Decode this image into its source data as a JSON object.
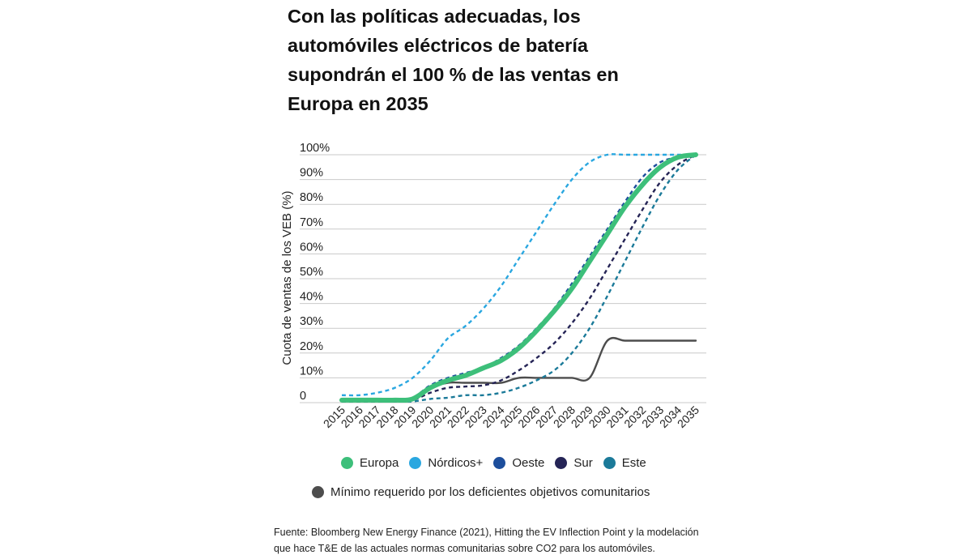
{
  "title": "Con las políticas adecuadas, los automóviles eléctricos de batería supondrán el 100 % de las ventas en Europa en 2035",
  "chart_data": {
    "type": "line",
    "title": "Con las políticas adecuadas, los automóviles eléctricos de batería supondrán el 100 % de las ventas en Europa en 2035",
    "xlabel": "",
    "ylabel": "Cuota de ventas de los VEB (%)",
    "ylim": [
      0,
      100
    ],
    "yticks": [
      0,
      10,
      20,
      30,
      40,
      50,
      60,
      70,
      80,
      90,
      100
    ],
    "ytick_labels": [
      "0",
      "10%",
      "20%",
      "30%",
      "40%",
      "50%",
      "60%",
      "70%",
      "80%",
      "90%",
      "100%"
    ],
    "grid": true,
    "categories": [
      "2015",
      "2016",
      "2017",
      "2018",
      "2019",
      "2020",
      "2021",
      "2022",
      "2023",
      "2024",
      "2025",
      "2026",
      "2027",
      "2028",
      "2029",
      "2030",
      "2031",
      "2032",
      "2033",
      "2034",
      "2035"
    ],
    "series": [
      {
        "name": "Europa",
        "color": "#3dbf7a",
        "style": "solid-thick",
        "values": [
          1,
          1,
          1,
          1,
          1.5,
          6,
          9,
          11,
          14,
          17,
          22,
          29,
          37,
          46,
          57,
          68,
          79,
          88,
          95,
          99,
          100
        ]
      },
      {
        "name": "Nórdicos+",
        "color": "#2aa7e0",
        "style": "dashed",
        "values": [
          3,
          3,
          4,
          6,
          10,
          17,
          26,
          31,
          38,
          47,
          58,
          69,
          80,
          90,
          97,
          100,
          100,
          100,
          100,
          100,
          100
        ]
      },
      {
        "name": "Oeste",
        "color": "#1d4e9c",
        "style": "dashed",
        "values": [
          1,
          1,
          1,
          1,
          2,
          7,
          10,
          12,
          14,
          18,
          23,
          30,
          38,
          48,
          59,
          70,
          81,
          91,
          97,
          99,
          100
        ]
      },
      {
        "name": "Sur",
        "color": "#252456",
        "style": "dashed",
        "values": [
          0.5,
          0.5,
          0.5,
          0.5,
          1,
          4,
          6,
          6.5,
          7,
          9,
          13,
          18,
          24,
          32,
          42,
          54,
          66,
          78,
          89,
          96,
          100
        ]
      },
      {
        "name": "Este",
        "color": "#1b7a99",
        "style": "dashed",
        "values": [
          0.5,
          0.5,
          0.5,
          0.5,
          0.5,
          1.5,
          2,
          3,
          3,
          4,
          6,
          9,
          13,
          20,
          30,
          43,
          57,
          71,
          84,
          94,
          100
        ]
      },
      {
        "name": "Mínimo requerido por los deficientes objetivos comunitarios",
        "color": "#4d4d4d",
        "style": "solid",
        "values": [
          1,
          1,
          1,
          1,
          1.5,
          6,
          8,
          8,
          8,
          8,
          10,
          10,
          10,
          10,
          10,
          25,
          25,
          25,
          25,
          25,
          25
        ]
      }
    ]
  },
  "legend": {
    "row1": [
      {
        "label": "Europa",
        "color": "#3dbf7a"
      },
      {
        "label": "Nórdicos+",
        "color": "#2aa7e0"
      },
      {
        "label": "Oeste",
        "color": "#1d4e9c"
      },
      {
        "label": "Sur",
        "color": "#252456"
      },
      {
        "label": "Este",
        "color": "#1b7a99"
      }
    ],
    "row2": [
      {
        "label": "Mínimo requerido por los deficientes objetivos comunitarios",
        "color": "#4d4d4d"
      }
    ]
  },
  "source": {
    "line1": "Fuente: Bloomberg New Energy Finance (2021), Hitting the EV Inflection Point y la modelación",
    "line2": "que hace T&E de las actuales normas comunitarias sobre CO2 para los automóviles."
  }
}
